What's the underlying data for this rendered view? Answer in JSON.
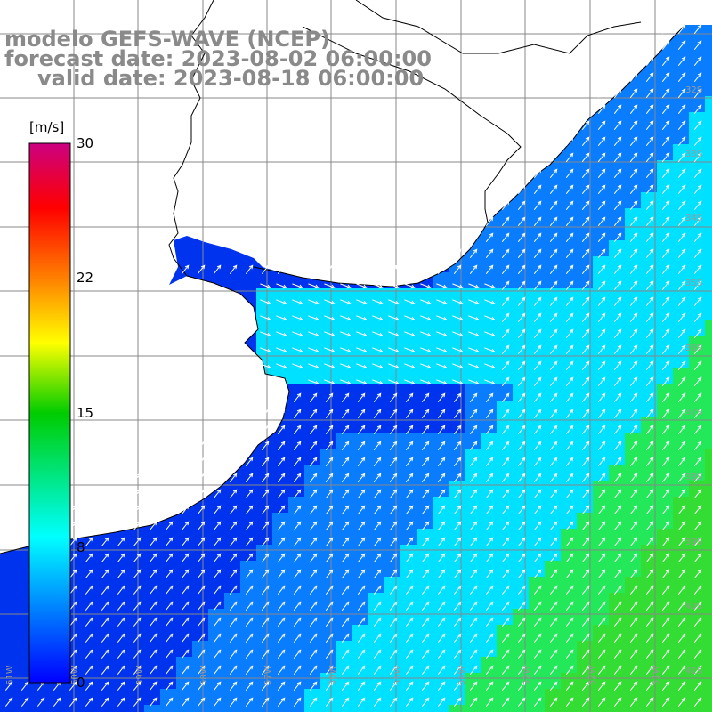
{
  "title": {
    "line1": "modelo GEFS-WAVE (NCEP)",
    "line2": "forecast date: 2023-08-02 06:00:00",
    "line3": "valid date: 2023-08-18 06:00:00"
  },
  "colorbar": {
    "unit": "[m/s]",
    "ticks": [
      "30",
      "22",
      "15",
      "8",
      "0"
    ],
    "stops": [
      "#0000ff",
      "#00ffff",
      "#00cc00",
      "#ffff00",
      "#ff8000",
      "#ff0000",
      "#cc0080"
    ]
  },
  "map": {
    "lat_labels": [
      "32S",
      "33S",
      "34S",
      "35S",
      "36S",
      "37S",
      "38S",
      "39S",
      "40S",
      "41S"
    ],
    "lon_labels": [
      "61W",
      "60W",
      "59W",
      "58W",
      "57W",
      "56W",
      "55W",
      "54W",
      "53W",
      "52W",
      "51W"
    ],
    "colors": {
      "land": "#ffffff",
      "grid": "#888888",
      "coast": "#000000",
      "arrow": "#ffffff",
      "calm": "#0033ee",
      "light": "#0a7dff",
      "moderate": "#00e0ff",
      "strong": "#22e85a",
      "strongest": "#33dd33"
    }
  }
}
